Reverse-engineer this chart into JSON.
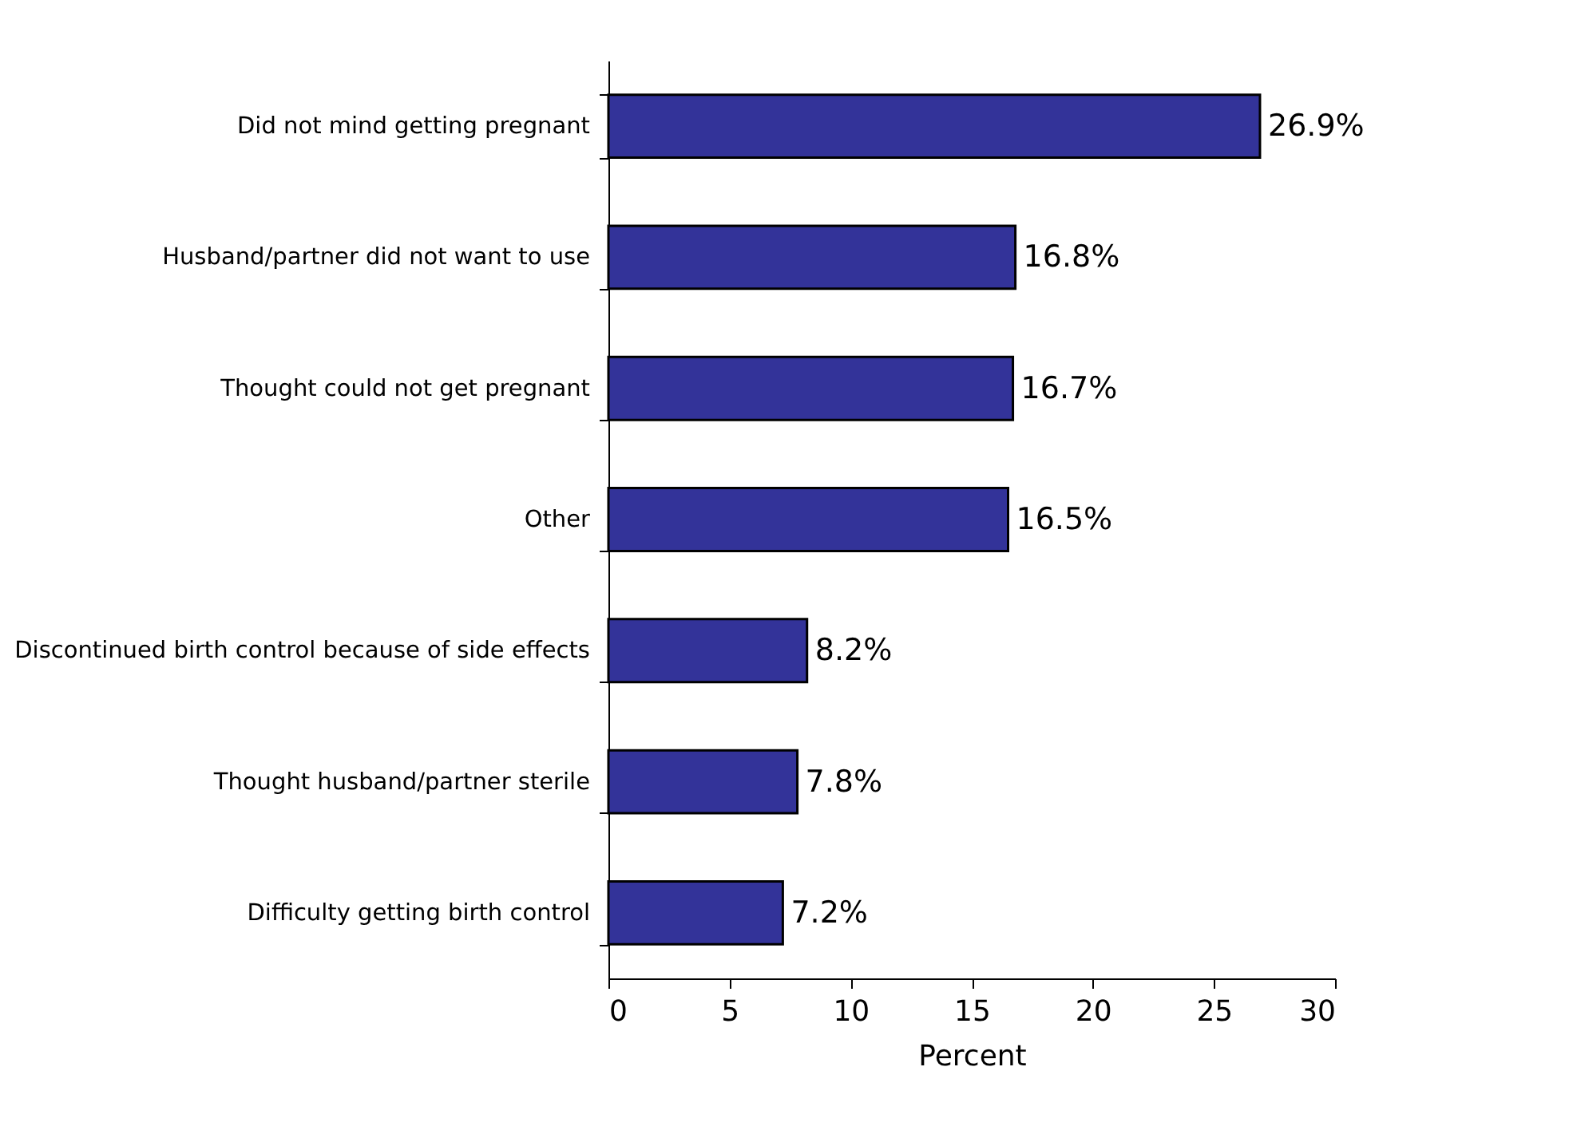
{
  "chart_data": {
    "type": "bar",
    "orientation": "horizontal",
    "xlabel": "Percent",
    "categories": [
      "Did not mind getting pregnant",
      "Husband/partner did not want to use",
      "Thought could not get pregnant",
      "Other",
      "Discontinued birth control because of side effects",
      "Thought husband/partner sterile",
      "Difficulty getting birth control"
    ],
    "values": [
      26.9,
      16.8,
      16.7,
      16.5,
      8.2,
      7.8,
      7.2
    ],
    "value_labels": [
      "26.9%",
      "16.8%",
      "16.7%",
      "16.5%",
      "8.2%",
      "7.8%",
      "7.2%"
    ],
    "color": "#333399",
    "xlim": [
      0,
      30
    ],
    "xticks": [
      0,
      5,
      10,
      15,
      20,
      25,
      30
    ],
    "grid": false
  }
}
